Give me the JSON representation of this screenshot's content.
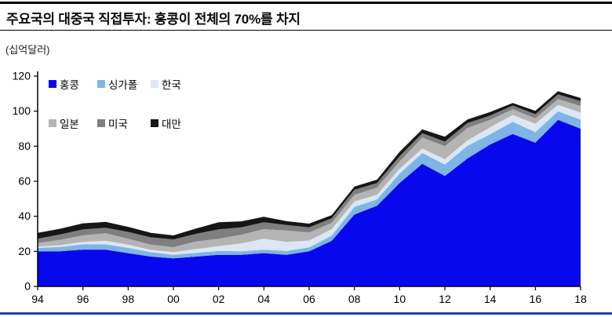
{
  "header": {
    "title": "주요국의 대중국 직접투자: 홍콩이 전체의 70%를 차지",
    "unit_label": "(십억달러)"
  },
  "colors": {
    "axis": "#000000",
    "top_rule": "#000000",
    "footer_rule": "#24459c",
    "background": "#ffffff"
  },
  "chart_data": {
    "type": "area",
    "stacked": true,
    "title": "주요국의 대중국 직접투자: 홍콩이 전체의 70%를 차지",
    "ylabel": "(십억달러)",
    "xlabel": "",
    "grid": false,
    "legend_position": "upper-left-inside",
    "ylim": [
      0,
      120
    ],
    "y_ticks": [
      0,
      20,
      40,
      60,
      80,
      100,
      120
    ],
    "x": [
      1994,
      1995,
      1996,
      1997,
      1998,
      1999,
      2000,
      2001,
      2002,
      2003,
      2004,
      2005,
      2006,
      2007,
      2008,
      2009,
      2010,
      2011,
      2012,
      2013,
      2014,
      2015,
      2016,
      2017,
      2018
    ],
    "x_tick_labels": [
      "94",
      "96",
      "98",
      "00",
      "02",
      "04",
      "06",
      "08",
      "10",
      "12",
      "14",
      "16",
      "18"
    ],
    "series": [
      {
        "name": "홍콩",
        "color": "#0808ee",
        "values": [
          20,
          20,
          21,
          21,
          19,
          17,
          16,
          17,
          18,
          18,
          19,
          18,
          20,
          26,
          41,
          46,
          59,
          70,
          63,
          73,
          81,
          87,
          82,
          95,
          90
        ]
      },
      {
        "name": "싱가폴",
        "color": "#7eb5e6",
        "values": [
          2,
          2.5,
          3,
          3,
          3,
          2.5,
          2,
          2.1,
          2.3,
          2,
          2,
          2.2,
          2.3,
          3,
          4.4,
          3.6,
          5.4,
          6.1,
          6.5,
          7.2,
          5.8,
          6.9,
          6,
          4.9,
          5.2
        ]
      },
      {
        "name": "한국",
        "color": "#dce6f4",
        "values": [
          0.7,
          1,
          1.4,
          2,
          1.8,
          1.3,
          1.5,
          2.2,
          2.7,
          4.5,
          6.2,
          5.2,
          3.9,
          3.7,
          3.1,
          2.7,
          2.7,
          2.6,
          3.1,
          3.1,
          4,
          4,
          4.8,
          3.7,
          4
        ]
      },
      {
        "name": "일본",
        "color": "#b4b4b4",
        "values": [
          2,
          3.1,
          3.7,
          4.3,
          3.4,
          3,
          2.9,
          4.3,
          4.2,
          5,
          5.5,
          6.5,
          4.6,
          3.6,
          3.7,
          4.1,
          4.2,
          6.3,
          7.4,
          7.1,
          4.3,
          3.2,
          3.1,
          3.3,
          3.8
        ]
      },
      {
        "name": "미국",
        "color": "#7f7f7f",
        "values": [
          2.5,
          3.1,
          3.4,
          3.2,
          3.9,
          4.2,
          4.4,
          4.4,
          5.4,
          4.2,
          3.9,
          3.1,
          2.9,
          2.6,
          2.9,
          2.6,
          3,
          2.4,
          2.6,
          2.8,
          2.4,
          2.1,
          2.4,
          2.7,
          2.7
        ]
      },
      {
        "name": "대만",
        "color": "#161616",
        "values": [
          3.4,
          3.2,
          3.5,
          3.3,
          2.9,
          2.6,
          2.3,
          3,
          4,
          3.4,
          3.1,
          2.2,
          2.1,
          1.8,
          1.9,
          1.9,
          2.5,
          2.2,
          2.8,
          2.1,
          2,
          1.5,
          1.9,
          1.8,
          1.8
        ]
      }
    ]
  }
}
